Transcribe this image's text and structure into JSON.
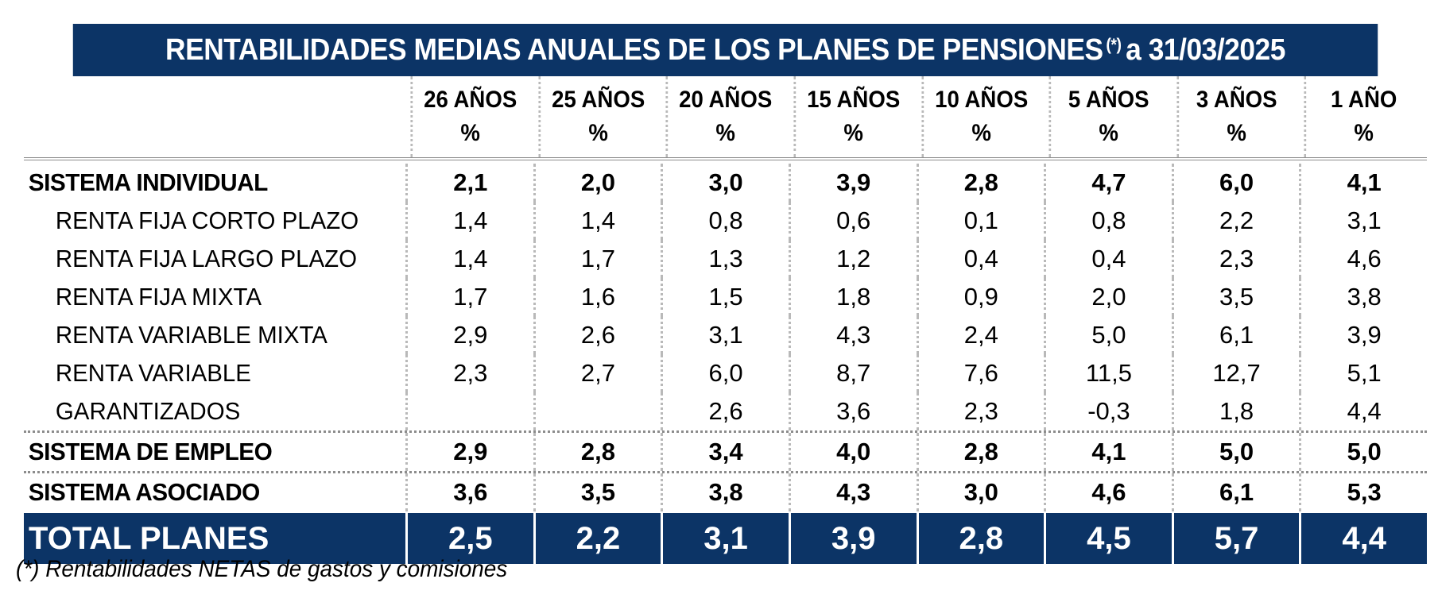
{
  "title": {
    "main": "RENTABILIDADES MEDIAS ANUALES DE LOS PLANES DE PENSIONES",
    "marker": "(*)",
    "date": "a 31/03/2025"
  },
  "columns": [
    {
      "years": "26 AÑOS",
      "unit": "%"
    },
    {
      "years": "25 AÑOS",
      "unit": "%"
    },
    {
      "years": "20 AÑOS",
      "unit": "%"
    },
    {
      "years": "15 AÑOS",
      "unit": "%"
    },
    {
      "years": "10 AÑOS",
      "unit": "%"
    },
    {
      "years": "5 AÑOS",
      "unit": "%"
    },
    {
      "years": "3 AÑOS",
      "unit": "%"
    },
    {
      "years": "1 AÑO",
      "unit": "%"
    }
  ],
  "rows": [
    {
      "label": "SISTEMA INDIVIDUAL",
      "values": [
        "2,1",
        "2,0",
        "3,0",
        "3,9",
        "2,8",
        "4,7",
        "6,0",
        "4,1"
      ]
    },
    {
      "label": "RENTA FIJA CORTO PLAZO",
      "values": [
        "1,4",
        "1,4",
        "0,8",
        "0,6",
        "0,1",
        "0,8",
        "2,2",
        "3,1"
      ]
    },
    {
      "label": "RENTA FIJA LARGO PLAZO",
      "values": [
        "1,4",
        "1,7",
        "1,3",
        "1,2",
        "0,4",
        "0,4",
        "2,3",
        "4,6"
      ]
    },
    {
      "label": "RENTA FIJA MIXTA",
      "values": [
        "1,7",
        "1,6",
        "1,5",
        "1,8",
        "0,9",
        "2,0",
        "3,5",
        "3,8"
      ]
    },
    {
      "label": "RENTA VARIABLE MIXTA",
      "values": [
        "2,9",
        "2,6",
        "3,1",
        "4,3",
        "2,4",
        "5,0",
        "6,1",
        "3,9"
      ]
    },
    {
      "label": "RENTA VARIABLE",
      "values": [
        "2,3",
        "2,7",
        "6,0",
        "8,7",
        "7,6",
        "11,5",
        "12,7",
        "5,1"
      ]
    },
    {
      "label": "GARANTIZADOS",
      "values": [
        "",
        "",
        "2,6",
        "3,6",
        "2,3",
        "-0,3",
        "1,8",
        "4,4"
      ]
    },
    {
      "label": "SISTEMA DE EMPLEO",
      "values": [
        "2,9",
        "2,8",
        "3,4",
        "4,0",
        "2,8",
        "4,1",
        "5,0",
        "5,0"
      ]
    },
    {
      "label": "SISTEMA ASOCIADO",
      "values": [
        "3,6",
        "3,5",
        "3,8",
        "4,3",
        "3,0",
        "4,6",
        "6,1",
        "5,3"
      ]
    },
    {
      "label": "TOTAL PLANES",
      "values": [
        "2,5",
        "2,2",
        "3,1",
        "3,9",
        "2,8",
        "4,5",
        "5,7",
        "4,4"
      ]
    }
  ],
  "footnote": "(*) Rentabilidades NETAS de gastos y comisiones",
  "colors": {
    "header_bg": "#0c3466",
    "header_text": "#ffffff"
  }
}
